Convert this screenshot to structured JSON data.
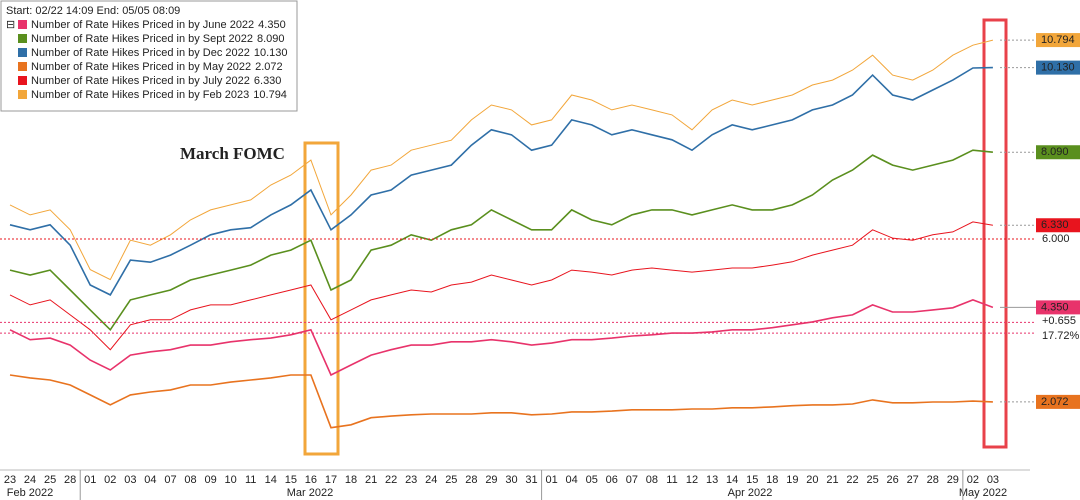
{
  "header": "Start: 02/22 14:09 End: 05/05 08:09",
  "chart_data": {
    "type": "line",
    "categories": [
      "23",
      "24",
      "25",
      "28",
      "01",
      "02",
      "03",
      "04",
      "07",
      "08",
      "09",
      "10",
      "11",
      "14",
      "15",
      "16",
      "17",
      "18",
      "21",
      "22",
      "23",
      "24",
      "25",
      "28",
      "29",
      "30",
      "31",
      "01",
      "04",
      "05",
      "06",
      "07",
      "08",
      "11",
      "12",
      "13",
      "14",
      "15",
      "18",
      "19",
      "20",
      "21",
      "22",
      "25",
      "26",
      "27",
      "28",
      "29",
      "02",
      "03"
    ],
    "months": [
      "Feb 2022",
      "Mar 2022",
      "Apr 2022",
      "May 2022"
    ],
    "ylim": [
      0.43,
      11.76
    ],
    "grid": false,
    "legend": "top-left",
    "series": [
      {
        "name": "Number of Rate Hikes Priced in by June 2022",
        "last_label": "4.350",
        "color": "#e8336b",
        "values": [
          3.81,
          3.57,
          3.61,
          3.44,
          3.08,
          2.84,
          3.2,
          3.28,
          3.33,
          3.44,
          3.44,
          3.52,
          3.57,
          3.61,
          3.69,
          3.81,
          2.72,
          2.96,
          3.2,
          3.33,
          3.44,
          3.44,
          3.52,
          3.52,
          3.57,
          3.52,
          3.44,
          3.49,
          3.57,
          3.57,
          3.61,
          3.66,
          3.69,
          3.73,
          3.73,
          3.76,
          3.81,
          3.81,
          3.86,
          3.93,
          4.0,
          4.1,
          4.17,
          4.41,
          4.24,
          4.24,
          4.29,
          4.34,
          4.53,
          4.35
        ]
      },
      {
        "name": "Number of Rate Hikes Priced in by Sept 2022",
        "last_label": "8.090",
        "color": "#5a8f1e",
        "values": [
          5.25,
          5.13,
          5.25,
          4.77,
          4.29,
          3.81,
          4.53,
          4.65,
          4.77,
          5.01,
          5.13,
          5.25,
          5.37,
          5.61,
          5.73,
          5.97,
          4.77,
          5.01,
          5.73,
          5.85,
          6.1,
          5.97,
          6.22,
          6.34,
          6.7,
          6.46,
          6.22,
          6.22,
          6.7,
          6.46,
          6.34,
          6.58,
          6.7,
          6.7,
          6.58,
          6.7,
          6.82,
          6.7,
          6.7,
          6.82,
          7.06,
          7.42,
          7.66,
          8.02,
          7.78,
          7.66,
          7.78,
          7.9,
          8.14,
          8.09
        ]
      },
      {
        "name": "Number of Rate Hikes Priced in by Dec 2022",
        "last_label": "10.130",
        "color": "#2f6fa7",
        "values": [
          6.34,
          6.22,
          6.34,
          5.85,
          4.89,
          4.65,
          5.49,
          5.44,
          5.61,
          5.85,
          6.1,
          6.22,
          6.27,
          6.58,
          6.82,
          7.18,
          6.22,
          6.58,
          7.06,
          7.18,
          7.54,
          7.66,
          7.78,
          8.26,
          8.63,
          8.51,
          8.14,
          8.26,
          8.87,
          8.75,
          8.51,
          8.63,
          8.51,
          8.39,
          8.14,
          8.51,
          8.75,
          8.63,
          8.75,
          8.87,
          9.11,
          9.23,
          9.47,
          9.95,
          9.47,
          9.35,
          9.59,
          9.83,
          10.12,
          10.13
        ]
      },
      {
        "name": "Number of Rate Hikes Priced in by May 2022",
        "last_label": "2.072",
        "color": "#e8731f",
        "values": [
          2.72,
          2.65,
          2.6,
          2.48,
          2.24,
          2.0,
          2.24,
          2.31,
          2.36,
          2.48,
          2.48,
          2.55,
          2.6,
          2.65,
          2.72,
          2.72,
          1.45,
          1.52,
          1.69,
          1.73,
          1.76,
          1.78,
          1.78,
          1.78,
          1.81,
          1.81,
          1.76,
          1.78,
          1.83,
          1.83,
          1.85,
          1.88,
          1.88,
          1.88,
          1.9,
          1.9,
          1.93,
          1.93,
          1.95,
          1.98,
          2.0,
          2.0,
          2.02,
          2.12,
          2.05,
          2.05,
          2.07,
          2.07,
          2.09,
          2.072
        ]
      },
      {
        "name": "Number of Rate Hikes Priced in by July 2022",
        "last_label": "6.330",
        "color": "#e8141e",
        "values": [
          4.65,
          4.41,
          4.53,
          4.17,
          3.81,
          3.33,
          3.93,
          4.05,
          4.05,
          4.29,
          4.41,
          4.41,
          4.53,
          4.65,
          4.77,
          4.89,
          4.05,
          4.29,
          4.53,
          4.65,
          4.77,
          4.72,
          4.89,
          4.96,
          5.13,
          5.01,
          4.89,
          5.01,
          5.25,
          5.2,
          5.13,
          5.25,
          5.3,
          5.25,
          5.2,
          5.25,
          5.3,
          5.3,
          5.37,
          5.45,
          5.61,
          5.73,
          5.85,
          6.22,
          6.02,
          5.97,
          6.1,
          6.17,
          6.41,
          6.33
        ]
      },
      {
        "name": "Number of Rate Hikes Priced in by Feb 2023",
        "last_label": "10.794",
        "color": "#f2a63a",
        "values": [
          6.82,
          6.58,
          6.7,
          6.22,
          5.26,
          5.02,
          5.97,
          5.85,
          6.1,
          6.46,
          6.7,
          6.82,
          6.94,
          7.3,
          7.54,
          7.9,
          6.58,
          7.06,
          7.66,
          7.78,
          8.14,
          8.26,
          8.38,
          8.87,
          9.23,
          9.11,
          8.75,
          8.87,
          9.47,
          9.35,
          9.11,
          9.23,
          9.11,
          8.99,
          8.63,
          9.11,
          9.35,
          9.23,
          9.35,
          9.47,
          9.71,
          9.83,
          10.07,
          10.43,
          9.95,
          9.83,
          10.07,
          10.43,
          10.67,
          10.794
        ]
      }
    ],
    "reference_lines": [
      {
        "level": 6.0,
        "text": "6.000",
        "color": "#e8141e"
      },
      {
        "level": 3.99,
        "text": "+0.655",
        "color": "#e8336b"
      },
      {
        "level": 3.73,
        "text": "17.72%",
        "color": "#e8336b"
      }
    ],
    "annotations": [
      "March FOMC"
    ]
  }
}
